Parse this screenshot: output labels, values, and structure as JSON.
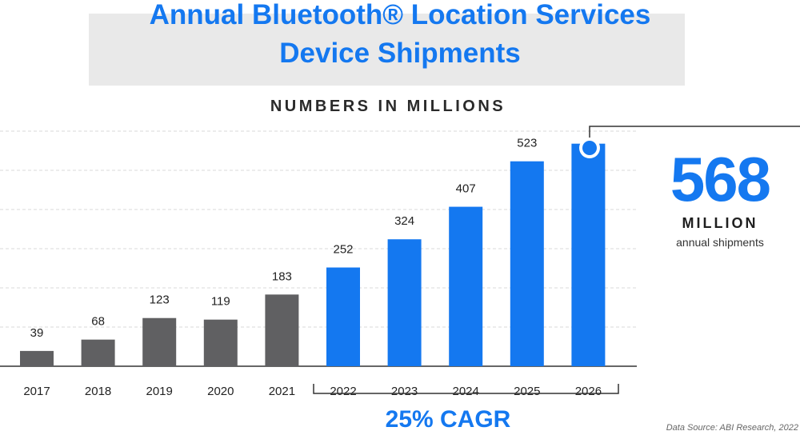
{
  "title_line1": "Annual Bluetooth® Location Services",
  "title_line2": "Device Shipments",
  "subtitle": "NUMBERS IN MILLIONS",
  "highlight": {
    "value": "568",
    "unit": "MILLION",
    "description": "annual shipments"
  },
  "cagr_label": "25% CAGR",
  "source": "Data Source: ABI Research, 2022",
  "colors": {
    "historical": "#606062",
    "forecast": "#1478f0",
    "title": "#1478f0"
  },
  "chart_data": {
    "type": "bar",
    "title": "Annual Bluetooth® Location Services Device Shipments",
    "subtitle": "NUMBERS IN MILLIONS",
    "categories": [
      "2017",
      "2018",
      "2019",
      "2020",
      "2021",
      "2022",
      "2023",
      "2024",
      "2025",
      "2026"
    ],
    "values": [
      39,
      68,
      123,
      119,
      183,
      252,
      324,
      407,
      523,
      568
    ],
    "data_labels": [
      "39",
      "68",
      "123",
      "119",
      "183",
      "252",
      "324",
      "407",
      "523",
      ""
    ],
    "highlighted": [
      false,
      false,
      false,
      false,
      false,
      true,
      true,
      true,
      true,
      true
    ],
    "ylim": [
      0,
      600
    ],
    "grid": true,
    "xlabel": "",
    "ylabel": "",
    "annotations": [
      "568 MILLION annual shipments",
      "25% CAGR"
    ]
  }
}
